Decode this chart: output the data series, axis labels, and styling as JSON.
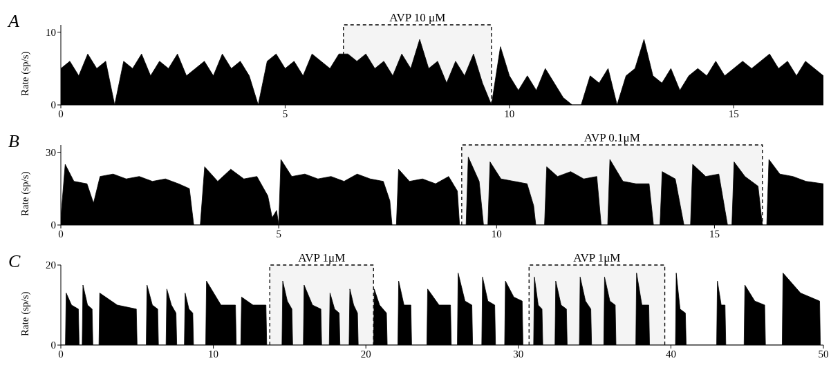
{
  "chart_data": [
    {
      "type": "area",
      "title": "A",
      "ylabel": "Rate (sp/s)",
      "color": "#000000",
      "xlim": [
        0,
        17
      ],
      "xticks": [
        0,
        5,
        10,
        15
      ],
      "ylim": [
        0,
        11
      ],
      "yticks": [
        0,
        10
      ],
      "bands": [
        {
          "axis": "x",
          "from": 6.3,
          "to": 9.6,
          "label": "AVP 10 μM",
          "color": "#e6e6e6"
        }
      ],
      "x": [
        0,
        0.2,
        0.4,
        0.6,
        0.8,
        1.0,
        1.2,
        1.4,
        1.6,
        1.8,
        2.0,
        2.2,
        2.4,
        2.6,
        2.8,
        3.0,
        3.2,
        3.4,
        3.6,
        3.8,
        4.0,
        4.2,
        4.4,
        4.6,
        4.8,
        5.0,
        5.2,
        5.4,
        5.6,
        5.8,
        6.0,
        6.2,
        6.4,
        6.6,
        6.8,
        7.0,
        7.2,
        7.4,
        7.6,
        7.8,
        8.0,
        8.2,
        8.4,
        8.6,
        8.8,
        9.0,
        9.2,
        9.4,
        9.6,
        9.8,
        10.0,
        10.2,
        10.4,
        10.6,
        10.8,
        11.0,
        11.2,
        11.4,
        11.6,
        11.8,
        12.0,
        12.2,
        12.4,
        12.6,
        12.8,
        13.0,
        13.2,
        13.4,
        13.6,
        13.8,
        14.0,
        14.2,
        14.4,
        14.6,
        14.8,
        15.0,
        15.2,
        15.4,
        15.6,
        15.8,
        16.0,
        16.2,
        16.4,
        16.6,
        16.8,
        17.0
      ],
      "values": [
        5,
        6,
        4,
        7,
        5,
        6,
        0,
        6,
        5,
        7,
        4,
        6,
        5,
        7,
        4,
        5,
        6,
        4,
        7,
        5,
        6,
        4,
        0,
        6,
        7,
        5,
        6,
        4,
        7,
        6,
        5,
        7,
        7,
        6,
        7,
        5,
        6,
        4,
        7,
        5,
        9,
        5,
        6,
        3,
        6,
        4,
        7,
        3,
        0,
        8,
        4,
        2,
        4,
        2,
        5,
        3,
        1,
        0,
        0,
        4,
        3,
        5,
        0,
        4,
        5,
        9,
        4,
        3,
        5,
        2,
        4,
        5,
        4,
        6,
        4,
        5,
        6,
        5,
        6,
        7,
        5,
        6,
        4,
        6,
        5,
        4
      ]
    },
    {
      "type": "area",
      "title": "B",
      "ylabel": "Rate (sp/s)",
      "color": "#000000",
      "xlim": [
        0,
        17.5
      ],
      "xticks": [
        0,
        5,
        10,
        15
      ],
      "ylim": [
        0,
        33
      ],
      "yticks": [
        0,
        30
      ],
      "bands": [
        {
          "axis": "x",
          "from": 9.2,
          "to": 16.1,
          "label": "AVP 0.1μM",
          "color": "#e6e6e6"
        }
      ],
      "x": [
        0,
        0.1,
        0.3,
        0.6,
        0.75,
        0.9,
        1.2,
        1.5,
        1.8,
        2.1,
        2.4,
        2.7,
        2.95,
        3.05,
        3.2,
        3.3,
        3.6,
        3.9,
        4.2,
        4.5,
        4.75,
        4.85,
        4.95,
        5.0,
        5.05,
        5.3,
        5.6,
        5.9,
        6.2,
        6.5,
        6.8,
        7.1,
        7.4,
        7.55,
        7.6,
        7.7,
        7.75,
        8.0,
        8.3,
        8.6,
        8.9,
        9.1,
        9.15,
        9.3,
        9.35,
        9.6,
        9.7,
        9.8,
        9.85,
        10.1,
        10.4,
        10.7,
        10.85,
        10.9,
        11.1,
        11.15,
        11.4,
        11.7,
        12.0,
        12.3,
        12.4,
        12.55,
        12.6,
        12.9,
        13.2,
        13.5,
        13.6,
        13.75,
        13.8,
        14.1,
        14.3,
        14.45,
        14.5,
        14.8,
        15.1,
        15.3,
        15.4,
        15.45,
        15.7,
        16.0,
        16.1,
        16.2,
        16.25,
        16.5,
        16.8,
        17.1,
        17.5
      ],
      "values": [
        3,
        25,
        18,
        17,
        9,
        20,
        21,
        19,
        20,
        18,
        19,
        17,
        15,
        0,
        0,
        24,
        18,
        23,
        19,
        20,
        12,
        3,
        6,
        0,
        27,
        20,
        21,
        19,
        20,
        18,
        21,
        19,
        18,
        10,
        0,
        0,
        23,
        18,
        19,
        17,
        20,
        14,
        0,
        0,
        28,
        18,
        0,
        0,
        26,
        19,
        18,
        17,
        8,
        0,
        0,
        24,
        20,
        22,
        19,
        20,
        0,
        0,
        27,
        18,
        17,
        17,
        0,
        0,
        22,
        19,
        0,
        0,
        25,
        20,
        21,
        0,
        0,
        26,
        20,
        16,
        0,
        0,
        27,
        21,
        20,
        18,
        17
      ]
    },
    {
      "type": "area",
      "title": "C",
      "ylabel": "Rate (sp/s)",
      "color": "#000000",
      "xlim": [
        0,
        50
      ],
      "xticks": [
        0,
        10,
        20,
        30,
        40,
        50
      ],
      "ylim": [
        0,
        20
      ],
      "yticks": [
        0,
        20
      ],
      "bands": [
        {
          "axis": "x",
          "from": 13.7,
          "to": 20.5,
          "label": "AVP 1μM",
          "color": "#e6e6e6"
        },
        {
          "axis": "x",
          "from": 30.7,
          "to": 39.6,
          "label": "AVP 1μM",
          "color": "#e6e6e6"
        }
      ],
      "x": [
        0,
        0.3,
        0.35,
        0.7,
        1.15,
        1.2,
        1.4,
        1.45,
        1.75,
        2.05,
        2.1,
        2.5,
        2.55,
        3.7,
        4.95,
        5.0,
        5.6,
        5.65,
        6.0,
        6.35,
        6.4,
        6.9,
        6.95,
        7.25,
        7.55,
        7.6,
        8.1,
        8.15,
        8.4,
        8.65,
        8.7,
        9.5,
        9.55,
        10.5,
        11.45,
        11.5,
        11.8,
        11.85,
        12.6,
        13.45,
        13.5,
        14.5,
        14.55,
        14.85,
        15.15,
        15.2,
        15.9,
        15.95,
        16.5,
        17.05,
        17.1,
        17.6,
        17.65,
        17.95,
        18.25,
        18.3,
        18.9,
        18.95,
        19.2,
        19.45,
        19.5,
        20.5,
        20.55,
        20.9,
        21.35,
        21.4,
        22.1,
        22.15,
        22.5,
        22.95,
        23.0,
        24.0,
        24.05,
        24.8,
        25.55,
        25.6,
        26.0,
        26.05,
        26.5,
        26.95,
        27.0,
        27.6,
        27.65,
        28.0,
        28.45,
        28.5,
        29.1,
        29.15,
        29.7,
        30.25,
        30.3,
        31.0,
        31.05,
        31.3,
        31.55,
        31.6,
        32.4,
        32.45,
        32.8,
        33.15,
        33.2,
        34.0,
        34.05,
        34.4,
        34.75,
        34.8,
        35.6,
        35.65,
        36.0,
        36.35,
        36.4,
        37.7,
        37.75,
        38.1,
        38.55,
        38.6,
        40.3,
        40.35,
        40.6,
        40.95,
        41.0,
        43.0,
        43.05,
        43.3,
        43.55,
        43.6,
        44.8,
        44.85,
        45.5,
        46.15,
        46.2,
        47.3,
        47.35,
        48.5,
        49.75,
        49.8
      ],
      "values": [
        0,
        0,
        13,
        10,
        9,
        0,
        0,
        15,
        10,
        9,
        0,
        0,
        13,
        10,
        9,
        0,
        0,
        15,
        10,
        9,
        0,
        0,
        14,
        10,
        8,
        0,
        0,
        13,
        9,
        8,
        0,
        0,
        16,
        10,
        10,
        0,
        0,
        12,
        10,
        10,
        0,
        0,
        16,
        11,
        9,
        0,
        0,
        15,
        10,
        9,
        0,
        0,
        13,
        9,
        8,
        0,
        0,
        14,
        10,
        8,
        0,
        0,
        14,
        10,
        8,
        0,
        0,
        16,
        10,
        10,
        0,
        0,
        14,
        10,
        10,
        0,
        0,
        18,
        11,
        10,
        0,
        0,
        17,
        11,
        10,
        0,
        0,
        16,
        12,
        11,
        0,
        0,
        17,
        10,
        9,
        0,
        0,
        16,
        10,
        9,
        0,
        0,
        17,
        11,
        9,
        0,
        0,
        17,
        11,
        10,
        0,
        0,
        18,
        10,
        10,
        0,
        0,
        18,
        9,
        8,
        0,
        0,
        16,
        10,
        10,
        0,
        0,
        15,
        11,
        10,
        0,
        0,
        18,
        13,
        11,
        0
      ]
    }
  ]
}
